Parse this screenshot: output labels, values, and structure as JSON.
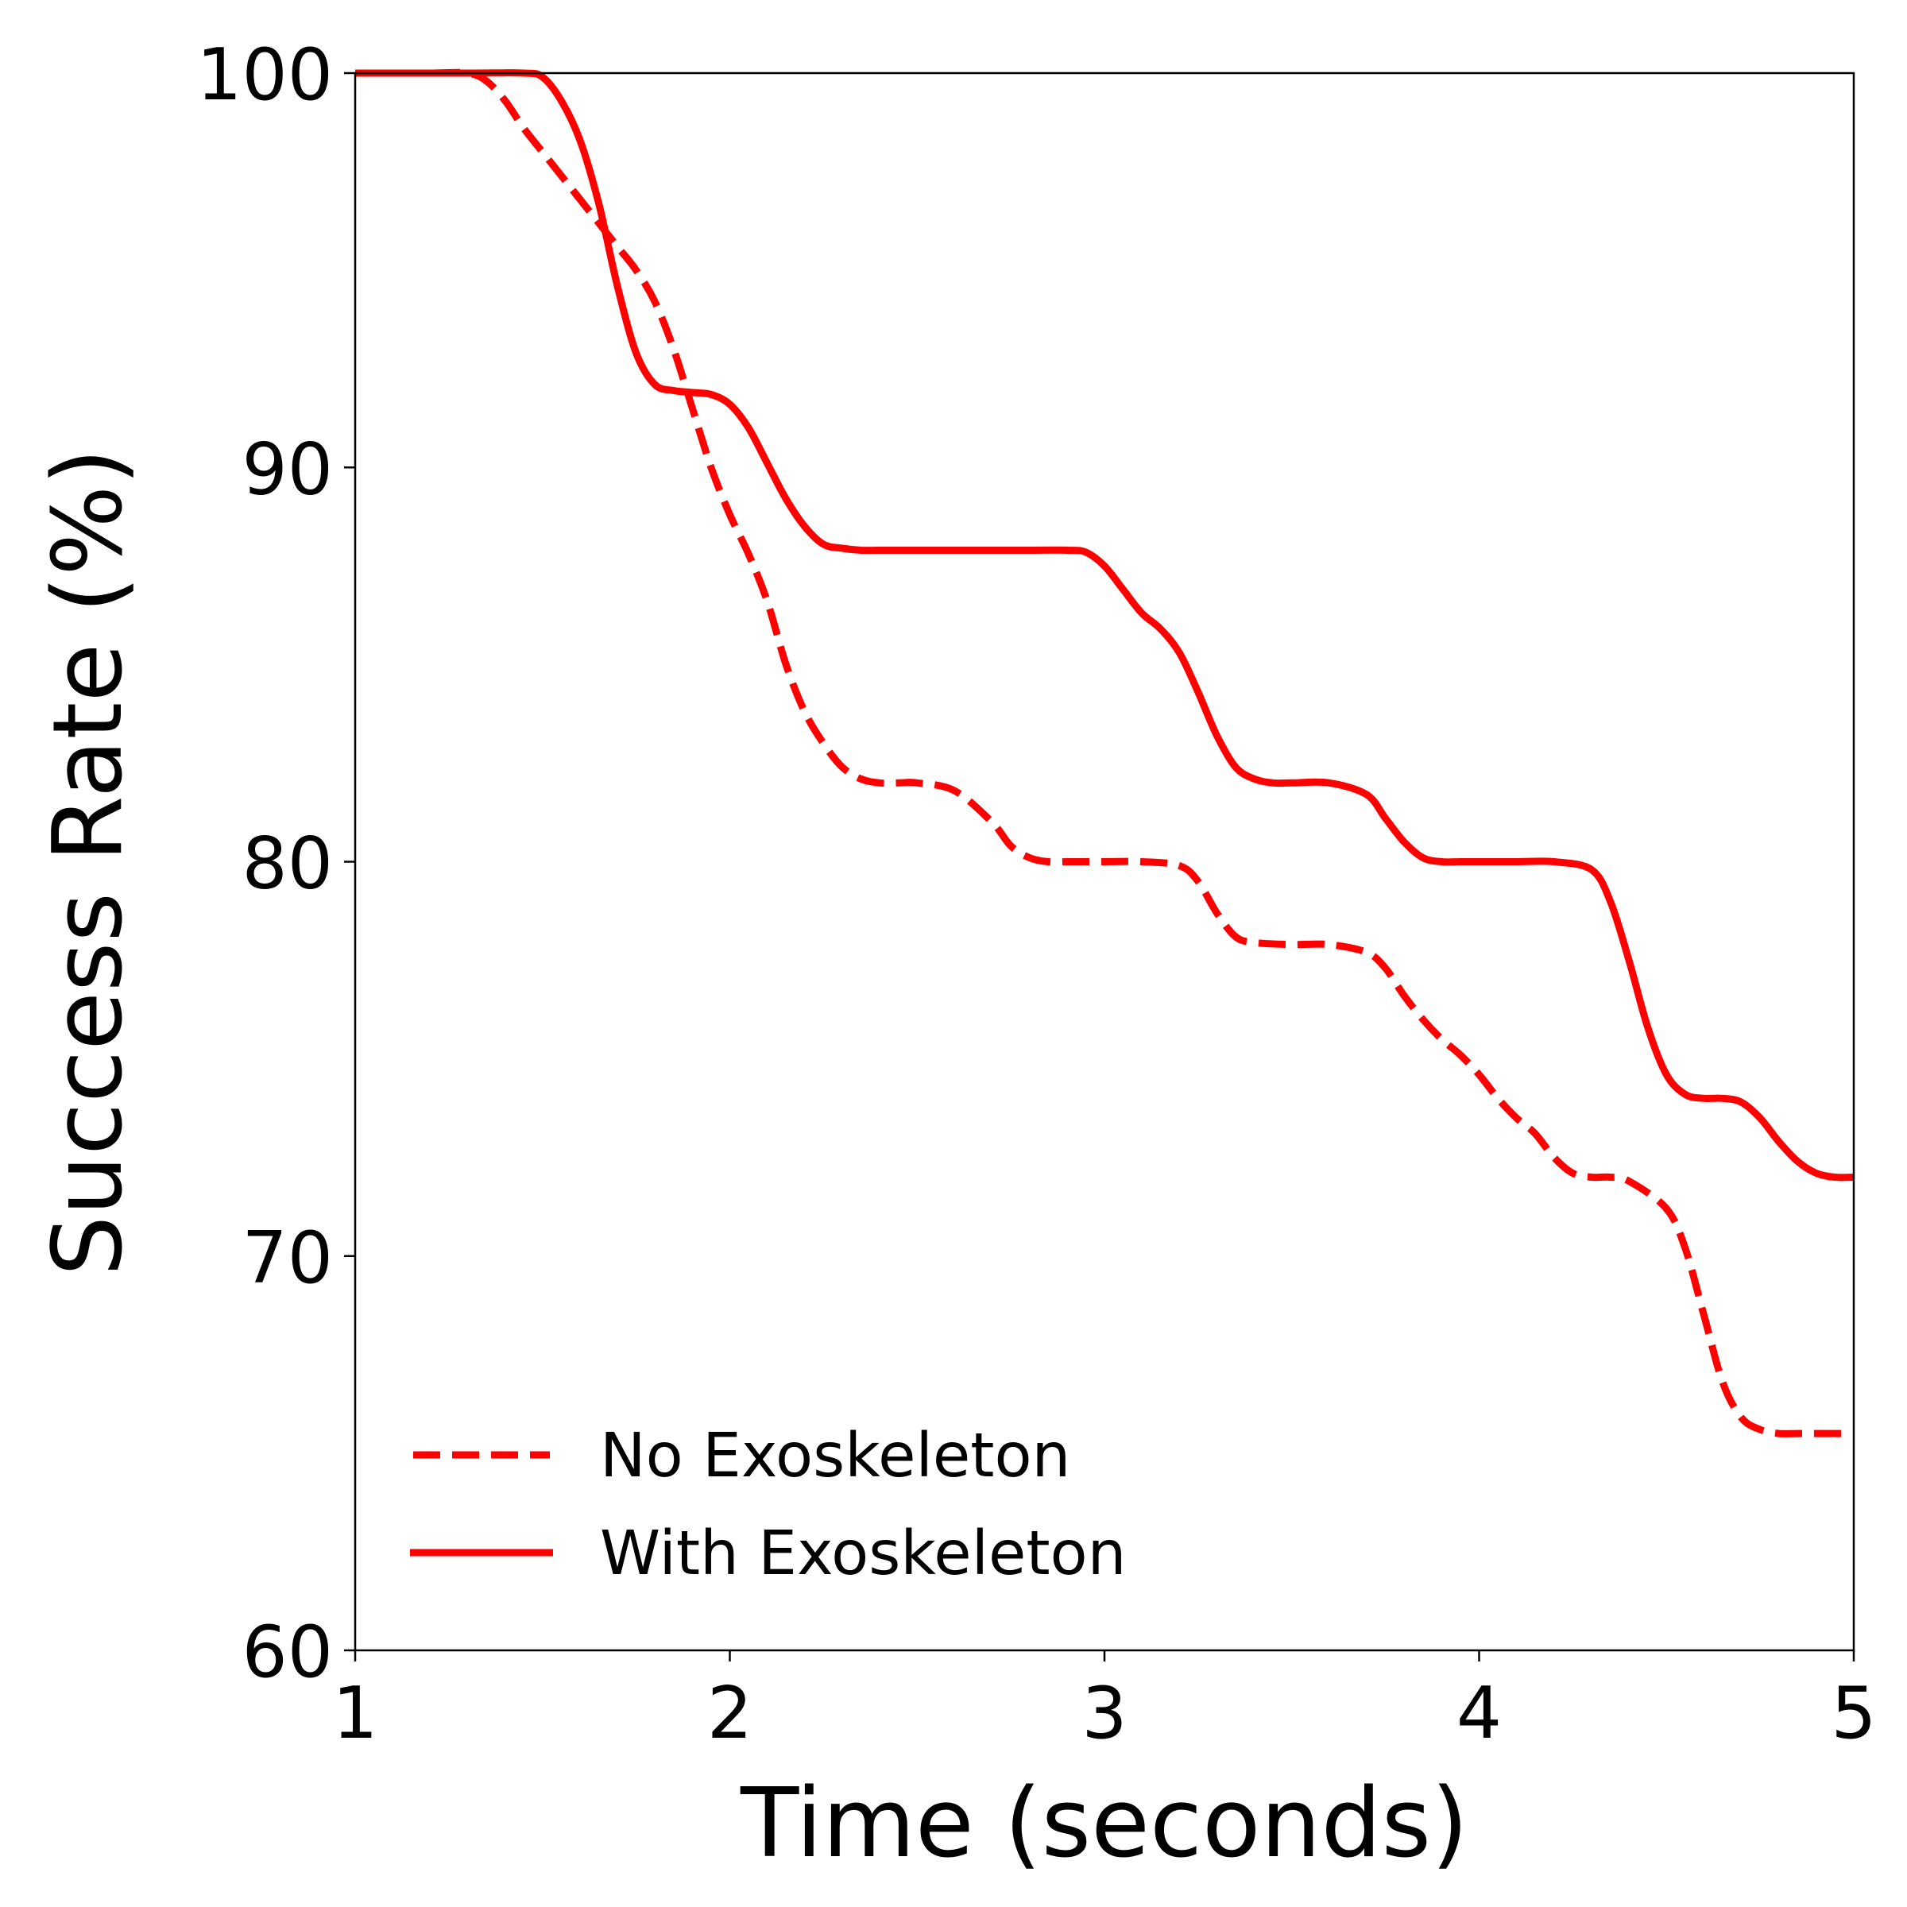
{
  "chart_data": {
    "type": "line",
    "title": "",
    "xlabel": "Time (seconds)",
    "ylabel": "Success Rate (%)",
    "xlim": [
      1,
      5
    ],
    "ylim": [
      60,
      100
    ],
    "xticks": [
      1,
      2,
      3,
      4,
      5
    ],
    "xtick_labels": [
      "1",
      "2",
      "3",
      "4",
      "5"
    ],
    "yticks": [
      60,
      70,
      80,
      90,
      100
    ],
    "ytick_labels": [
      "60",
      "70",
      "80",
      "90",
      "100"
    ],
    "grid": false,
    "legend_position": "bottom-left",
    "color": "#ff0000",
    "series": [
      {
        "name": "No Exoskeleton",
        "style": "dashed",
        "x": [
          1.0,
          1.2,
          1.3,
          1.35,
          1.4,
          1.45,
          1.5,
          1.55,
          1.6,
          1.65,
          1.7,
          1.75,
          1.8,
          1.85,
          1.9,
          1.95,
          2.0,
          2.05,
          2.1,
          2.15,
          2.2,
          2.25,
          2.3,
          2.35,
          2.4,
          2.45,
          2.5,
          2.6,
          2.7,
          2.75,
          2.8,
          2.85,
          2.9,
          2.95,
          3.0,
          3.1,
          3.2,
          3.25,
          3.3,
          3.35,
          3.4,
          3.5,
          3.6,
          3.7,
          3.75,
          3.8,
          3.85,
          3.9,
          3.95,
          4.0,
          4.05,
          4.1,
          4.15,
          4.2,
          4.25,
          4.3,
          4.35,
          4.4,
          4.5,
          4.55,
          4.6,
          4.65,
          4.7,
          4.75,
          4.8,
          4.85,
          4.9,
          5.0
        ],
        "values": [
          100,
          100,
          100,
          99.8,
          99.3,
          98.6,
          98.0,
          97.4,
          96.8,
          96.2,
          95.6,
          95.0,
          94.2,
          93.0,
          91.5,
          90.0,
          88.8,
          87.8,
          86.6,
          85.0,
          83.8,
          83.0,
          82.4,
          82.1,
          82.0,
          82.0,
          82.0,
          81.8,
          81.0,
          80.4,
          80.1,
          80.0,
          80.0,
          80.0,
          80.0,
          80.0,
          79.9,
          79.5,
          78.7,
          78.1,
          77.95,
          77.9,
          77.9,
          77.7,
          77.3,
          76.6,
          76.0,
          75.5,
          75.1,
          74.6,
          74.0,
          73.5,
          73.1,
          72.5,
          72.1,
          72.0,
          72.0,
          71.9,
          71.2,
          70.2,
          68.5,
          66.8,
          65.9,
          65.6,
          65.5,
          65.5,
          65.5,
          65.5
        ]
      },
      {
        "name": "With Exoskeleton",
        "style": "solid",
        "x": [
          1.0,
          1.3,
          1.45,
          1.5,
          1.55,
          1.6,
          1.65,
          1.7,
          1.75,
          1.8,
          1.85,
          1.9,
          1.95,
          2.0,
          2.05,
          2.1,
          2.15,
          2.2,
          2.25,
          2.3,
          2.35,
          2.4,
          2.5,
          2.6,
          2.7,
          2.8,
          2.9,
          2.95,
          3.0,
          3.05,
          3.1,
          3.15,
          3.2,
          3.25,
          3.3,
          3.35,
          3.4,
          3.45,
          3.5,
          3.6,
          3.7,
          3.75,
          3.8,
          3.85,
          3.9,
          3.95,
          4.0,
          4.1,
          4.2,
          4.3,
          4.35,
          4.4,
          4.45,
          4.5,
          4.55,
          4.6,
          4.65,
          4.7,
          4.75,
          4.8,
          4.85,
          4.9,
          4.95,
          5.0
        ],
        "values": [
          100,
          100,
          100,
          99.9,
          99.3,
          98.3,
          96.7,
          94.6,
          92.9,
          92.1,
          91.95,
          91.9,
          91.85,
          91.6,
          91.0,
          90.1,
          89.2,
          88.5,
          88.05,
          87.95,
          87.9,
          87.9,
          87.9,
          87.9,
          87.9,
          87.9,
          87.9,
          87.85,
          87.5,
          86.9,
          86.3,
          85.9,
          85.3,
          84.3,
          83.2,
          82.4,
          82.1,
          82.0,
          82.0,
          82.0,
          81.7,
          81.1,
          80.5,
          80.1,
          80.0,
          80.0,
          80.0,
          80.0,
          80.0,
          79.8,
          79.0,
          77.5,
          75.8,
          74.6,
          74.1,
          74.0,
          74.0,
          73.9,
          73.5,
          72.9,
          72.4,
          72.1,
          72.0,
          72.0
        ]
      }
    ]
  }
}
